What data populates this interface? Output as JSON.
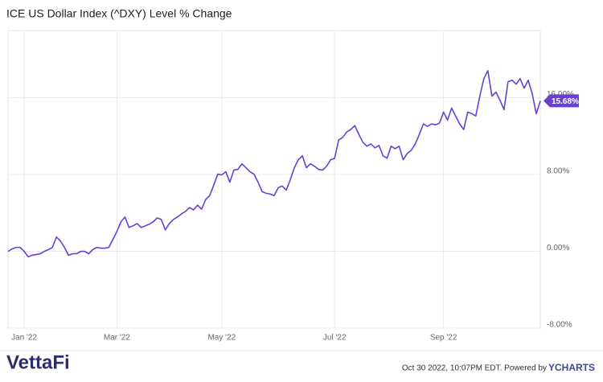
{
  "chart_data": {
    "type": "line",
    "title": "ICE US Dollar Index (^DXY) Level % Change",
    "color": "#6a3fd4",
    "grid": true,
    "xlim": [
      0,
      132
    ],
    "xticks": [
      {
        "value": 4,
        "label": "Jan '22"
      },
      {
        "value": 27,
        "label": "Mar '22"
      },
      {
        "value": 53,
        "label": "May '22"
      },
      {
        "value": 81,
        "label": "Jul '22"
      },
      {
        "value": 108,
        "label": "Sep '22"
      }
    ],
    "ylim": [
      -8,
      23
    ],
    "yticks": [
      {
        "value": -8,
        "label": "-8.00%"
      },
      {
        "value": 0,
        "label": "0.00%"
      },
      {
        "value": 8,
        "label": "8.00%"
      },
      {
        "value": 16,
        "label": "16.00%"
      }
    ],
    "values": [
      0.0,
      0.25,
      0.41,
      0.41,
      0.0,
      -0.58,
      -0.41,
      -0.33,
      -0.25,
      0.0,
      0.17,
      0.41,
      1.49,
      1.08,
      0.41,
      -0.41,
      -0.25,
      -0.25,
      0.0,
      0.0,
      -0.25,
      0.17,
      0.41,
      0.33,
      0.33,
      0.41,
      1.24,
      2.07,
      3.07,
      3.57,
      2.49,
      2.65,
      2.9,
      2.49,
      2.65,
      2.82,
      3.07,
      3.48,
      3.32,
      2.24,
      2.9,
      3.32,
      3.57,
      3.9,
      4.15,
      4.56,
      4.31,
      4.81,
      4.39,
      5.39,
      5.8,
      6.88,
      8.04,
      7.96,
      8.29,
      7.21,
      8.46,
      8.54,
      9.12,
      8.71,
      8.29,
      8.04,
      7.21,
      6.22,
      6.05,
      5.97,
      5.8,
      6.63,
      6.8,
      6.38,
      7.46,
      8.71,
      9.54,
      9.95,
      8.71,
      9.12,
      8.87,
      8.54,
      8.46,
      8.87,
      9.54,
      9.7,
      11.61,
      11.86,
      12.44,
      12.69,
      13.1,
      12.19,
      11.36,
      10.95,
      11.19,
      10.78,
      11.03,
      9.95,
      9.7,
      10.95,
      10.7,
      10.95,
      9.54,
      10.2,
      10.53,
      11.19,
      12.19,
      13.27,
      13.02,
      13.27,
      13.18,
      13.35,
      14.51,
      13.68,
      14.93,
      14.1,
      13.27,
      12.69,
      14.51,
      14.34,
      14.1,
      16.17,
      17.99,
      18.82,
      16.17,
      16.58,
      15.75,
      14.76,
      17.66,
      17.83,
      17.41,
      17.99,
      17.0,
      17.83,
      16.42,
      14.34,
      15.68
    ],
    "value_labels": [
      null,
      null,
      null,
      null,
      null,
      null,
      null,
      null,
      null,
      null,
      null,
      null,
      null,
      null,
      null,
      null,
      null,
      null,
      null,
      null,
      null,
      null,
      null,
      null,
      null,
      null,
      null,
      null,
      null,
      null,
      null,
      null,
      null,
      null,
      null,
      null,
      null,
      null,
      null,
      null,
      null,
      null,
      null,
      null,
      null,
      null,
      null,
      null,
      null,
      null,
      null,
      null,
      null,
      null,
      null,
      null,
      null,
      null,
      null,
      null,
      null,
      null,
      null,
      null,
      null,
      null,
      null,
      null,
      null,
      null,
      null,
      null,
      null,
      null,
      null,
      null,
      null,
      null,
      null,
      null,
      null,
      null,
      null,
      null,
      null,
      null,
      null,
      null,
      null,
      null,
      null,
      null,
      null,
      null,
      null,
      null,
      null,
      null,
      null,
      null,
      null,
      null,
      null,
      null,
      null,
      null,
      null,
      null,
      null,
      null,
      null,
      null,
      null,
      null,
      null,
      null,
      null,
      null,
      null,
      null,
      null,
      null,
      null,
      null,
      null,
      null,
      null,
      null,
      null,
      null,
      null,
      null,
      "15.68%"
    ],
    "footer": {
      "brand": "VettaFi",
      "timestamp": "Oct 30 2022, 10:07PM EDT. Powered by ",
      "source": "YCHARTS"
    }
  }
}
